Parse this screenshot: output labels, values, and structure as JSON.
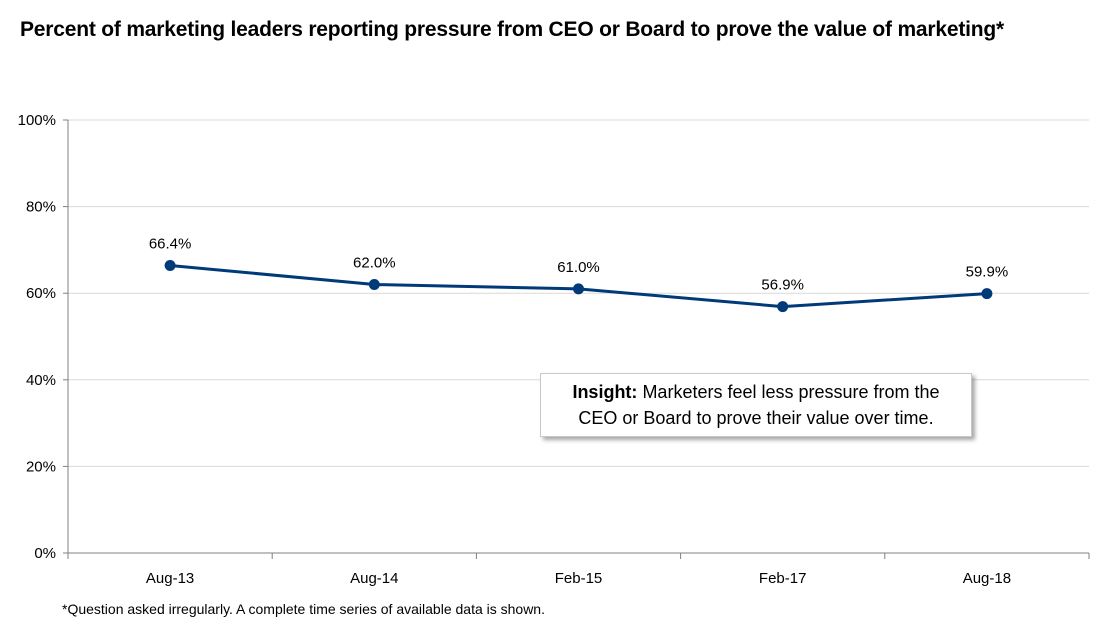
{
  "title": "Percent of marketing leaders reporting pressure from CEO or Board to prove the value of marketing*",
  "footnote": "*Question asked irregularly. A complete time series of available data is shown.",
  "insight": {
    "heading": "Insight:",
    "line1_rest": " Marketers feel less pressure from the",
    "line2": "CEO or Board to prove their value over time."
  },
  "colors": {
    "line": "#003a79",
    "grid": "#d9d9d9",
    "axis": "#808080"
  },
  "chart_data": {
    "type": "line",
    "categories": [
      "Aug-13",
      "Aug-14",
      "Feb-15",
      "Feb-17",
      "Aug-18"
    ],
    "series": [
      {
        "values": [
          66.4,
          62.0,
          61.0,
          56.9,
          59.9
        ],
        "labels": [
          "66.4%",
          "62.0%",
          "61.0%",
          "56.9%",
          "59.9%"
        ]
      }
    ],
    "ylim": [
      0,
      100
    ],
    "yticks": [
      0,
      20,
      40,
      60,
      80,
      100
    ],
    "ytick_labels": [
      "0%",
      "20%",
      "40%",
      "60%",
      "80%",
      "100%"
    ],
    "grid": true,
    "legend": "none"
  }
}
